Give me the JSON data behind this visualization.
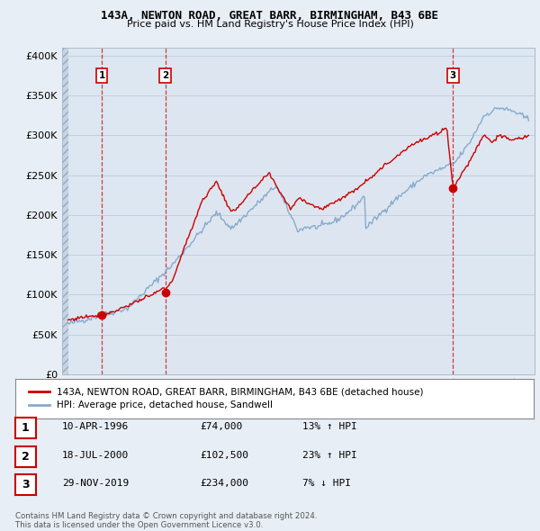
{
  "title_line1": "143A, NEWTON ROAD, GREAT BARR, BIRMINGHAM, B43 6BE",
  "title_line2": "Price paid vs. HM Land Registry's House Price Index (HPI)",
  "sale_color": "#cc0000",
  "hpi_color": "#88aacc",
  "vline_color": "#cc0000",
  "sale_dates": [
    1996.27,
    2000.54,
    2019.91
  ],
  "sale_prices": [
    74000,
    102500,
    234000
  ],
  "sale_labels": [
    "1",
    "2",
    "3"
  ],
  "legend_sale": "143A, NEWTON ROAD, GREAT BARR, BIRMINGHAM, B43 6BE (detached house)",
  "legend_hpi": "HPI: Average price, detached house, Sandwell",
  "table_rows": [
    {
      "num": "1",
      "date": "10-APR-1996",
      "price": "£74,000",
      "change": "13% ↑ HPI"
    },
    {
      "num": "2",
      "date": "18-JUL-2000",
      "price": "£102,500",
      "change": "23% ↑ HPI"
    },
    {
      "num": "3",
      "date": "29-NOV-2019",
      "price": "£234,000",
      "change": "7% ↓ HPI"
    }
  ],
  "footer": "Contains HM Land Registry data © Crown copyright and database right 2024.\nThis data is licensed under the Open Government Licence v3.0.",
  "bg_color": "#e8eef5",
  "plot_bg": "#dde6f0",
  "hatch_bg": "#c8d4e4",
  "xlim_start": 1993.6,
  "xlim_end": 2025.4,
  "ylim_min": 0,
  "ylim_max": 410000
}
